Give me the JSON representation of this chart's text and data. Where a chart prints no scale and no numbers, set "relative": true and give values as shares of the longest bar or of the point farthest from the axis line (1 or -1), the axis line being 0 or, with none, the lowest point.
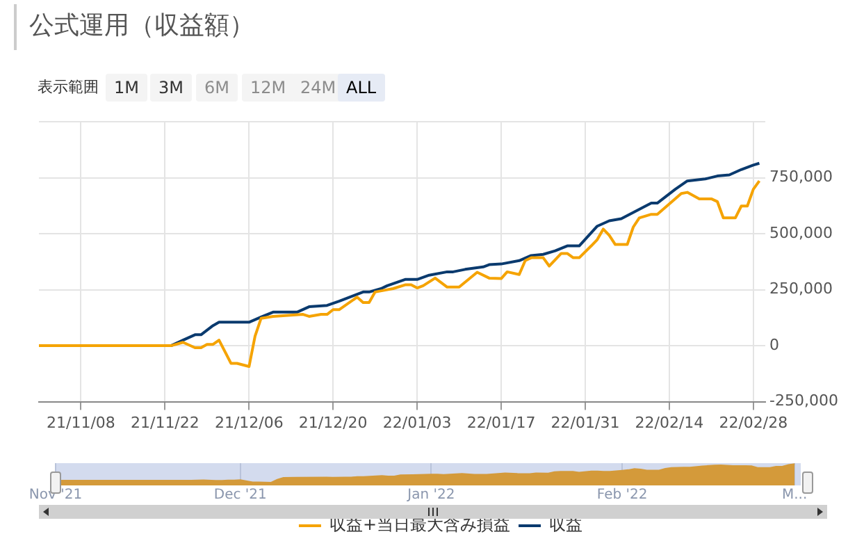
{
  "chart_data": [
    {
      "type": "line",
      "title": "公式運用（収益額）",
      "annotations": [
        "表示範囲",
        "1M",
        "3M",
        "6M",
        "12M",
        "24M",
        "ALL"
      ],
      "xlim": [
        "2021-11-01",
        "2022-03-02"
      ],
      "xticks": [
        {
          "value": "2021-11-08",
          "label": "21/11/08"
        },
        {
          "value": "2021-11-22",
          "label": "21/11/22"
        },
        {
          "value": "2021-12-06",
          "label": "21/12/06"
        },
        {
          "value": "2021-12-20",
          "label": "21/12/20"
        },
        {
          "value": "2022-01-03",
          "label": "22/01/03"
        },
        {
          "value": "2022-01-17",
          "label": "22/01/17"
        },
        {
          "value": "2022-01-31",
          "label": "22/01/31"
        },
        {
          "value": "2022-02-14",
          "label": "22/02/14"
        },
        {
          "value": "2022-02-28",
          "label": "22/02/28"
        }
      ],
      "ylim": [
        -250000,
        1000000
      ],
      "yticks": [
        {
          "value": -250000,
          "label": "-250,000"
        },
        {
          "value": 0,
          "label": "0"
        },
        {
          "value": 250000,
          "label": "250,000"
        },
        {
          "value": 500000,
          "label": "500,000"
        },
        {
          "value": 750000,
          "label": "750,000"
        },
        {
          "value": 1000000,
          "label": null
        }
      ],
      "grid": true,
      "legend": "bottom",
      "series": [
        {
          "name": "収益+当日最大含み損益",
          "color": "#f5a300",
          "x": [
            "2021-11-01",
            "2021-11-23",
            "2021-11-25",
            "2021-11-27",
            "2021-11-28",
            "2021-11-29",
            "2021-11-30",
            "2021-12-01",
            "2021-12-03",
            "2021-12-04",
            "2021-12-06",
            "2021-12-07",
            "2021-12-08",
            "2021-12-10",
            "2021-12-15",
            "2021-12-16",
            "2021-12-18",
            "2021-12-19",
            "2021-12-20",
            "2021-12-21",
            "2021-12-24",
            "2021-12-25",
            "2021-12-26",
            "2021-12-27",
            "2021-12-29",
            "2021-12-30",
            "2022-01-01",
            "2022-01-02",
            "2022-01-03",
            "2022-01-04",
            "2022-01-06",
            "2022-01-08",
            "2022-01-10",
            "2022-01-13",
            "2022-01-15",
            "2022-01-17",
            "2022-01-18",
            "2022-01-20",
            "2022-01-21",
            "2022-01-22",
            "2022-01-24",
            "2022-01-25",
            "2022-01-27",
            "2022-01-28",
            "2022-01-29",
            "2022-01-30",
            "2022-02-01",
            "2022-02-02",
            "2022-02-03",
            "2022-02-04",
            "2022-02-05",
            "2022-02-07",
            "2022-02-08",
            "2022-02-09",
            "2022-02-11",
            "2022-02-12",
            "2022-02-14",
            "2022-02-16",
            "2022-02-17",
            "2022-02-19",
            "2022-02-21",
            "2022-02-22",
            "2022-02-23",
            "2022-02-25",
            "2022-02-26",
            "2022-02-27",
            "2022-02-28",
            "2022-03-01"
          ],
          "values": [
            0,
            0,
            15000,
            -9000,
            -9000,
            6000,
            6000,
            25000,
            -79000,
            -79000,
            -93000,
            43000,
            122000,
            131000,
            140000,
            131000,
            140000,
            140000,
            161000,
            161000,
            217000,
            193000,
            193000,
            240000,
            250000,
            255000,
            272000,
            272000,
            258000,
            268000,
            302000,
            262000,
            262000,
            328000,
            302000,
            300000,
            330000,
            318000,
            380000,
            393000,
            393000,
            356000,
            412000,
            412000,
            393000,
            393000,
            446000,
            474000,
            521000,
            493000,
            452000,
            452000,
            530000,
            571000,
            587000,
            587000,
            633000,
            680000,
            685000,
            656000,
            656000,
            644000,
            571000,
            571000,
            624000,
            624000,
            699000,
            736000
          ]
        },
        {
          "name": "収益",
          "color": "#0a3a6e",
          "x": [
            "2021-11-01",
            "2021-11-23",
            "2021-11-25",
            "2021-11-27",
            "2021-11-28",
            "2021-11-30",
            "2021-12-01",
            "2021-12-06",
            "2021-12-08",
            "2021-12-10",
            "2021-12-14",
            "2021-12-16",
            "2021-12-19",
            "2021-12-21",
            "2021-12-25",
            "2021-12-26",
            "2021-12-28",
            "2021-12-29",
            "2022-01-01",
            "2022-01-03",
            "2022-01-05",
            "2022-01-08",
            "2022-01-09",
            "2022-01-11",
            "2022-01-14",
            "2022-01-15",
            "2022-01-17",
            "2022-01-20",
            "2022-01-22",
            "2022-01-24",
            "2022-01-26",
            "2022-01-28",
            "2022-01-30",
            "2022-02-02",
            "2022-02-04",
            "2022-02-06",
            "2022-02-08",
            "2022-02-11",
            "2022-02-12",
            "2022-02-15",
            "2022-02-17",
            "2022-02-20",
            "2022-02-22",
            "2022-02-24",
            "2022-02-26",
            "2022-02-28",
            "2022-03-01"
          ],
          "values": [
            0,
            0,
            25000,
            49000,
            49000,
            90000,
            105000,
            105000,
            128000,
            150000,
            150000,
            174000,
            180000,
            199000,
            240000,
            240000,
            255000,
            268000,
            296000,
            296000,
            315000,
            330000,
            330000,
            341000,
            352000,
            362000,
            365000,
            380000,
            403000,
            408000,
            424000,
            446000,
            446000,
            534000,
            558000,
            567000,
            595000,
            637000,
            637000,
            699000,
            736000,
            745000,
            758000,
            763000,
            787000,
            807000,
            815000
          ]
        }
      ]
    },
    {
      "type": "area",
      "relative": true,
      "color": "#d49a3a",
      "grid": true,
      "xlim": [
        "2021-11-01",
        "2022-03-02"
      ],
      "xticks": [
        {
          "value": "2021-11-01",
          "label": "Nov '21"
        },
        {
          "value": "2021-12-01",
          "label": "Dec '21"
        },
        {
          "value": "2022-01-01",
          "label": "Jan '22"
        },
        {
          "value": "2022-02-01",
          "label": "Feb '22"
        },
        {
          "value": "2022-03-01",
          "label": "M..."
        }
      ],
      "x": [
        "2021-11-01",
        "2021-11-23",
        "2021-11-25",
        "2021-11-27",
        "2021-11-28",
        "2021-11-29",
        "2021-11-30",
        "2021-12-01",
        "2021-12-03",
        "2021-12-04",
        "2021-12-06",
        "2021-12-07",
        "2021-12-08",
        "2021-12-10",
        "2021-12-15",
        "2021-12-16",
        "2021-12-18",
        "2021-12-19",
        "2021-12-20",
        "2021-12-21",
        "2021-12-24",
        "2021-12-25",
        "2021-12-26",
        "2021-12-27",
        "2021-12-29",
        "2021-12-30",
        "2022-01-01",
        "2022-01-02",
        "2022-01-03",
        "2022-01-04",
        "2022-01-06",
        "2022-01-08",
        "2022-01-10",
        "2022-01-13",
        "2022-01-15",
        "2022-01-17",
        "2022-01-18",
        "2022-01-20",
        "2022-01-21",
        "2022-01-22",
        "2022-01-24",
        "2022-01-25",
        "2022-01-27",
        "2022-01-28",
        "2022-01-29",
        "2022-01-30",
        "2022-02-01",
        "2022-02-02",
        "2022-02-03",
        "2022-02-04",
        "2022-02-05",
        "2022-02-07",
        "2022-02-08",
        "2022-02-09",
        "2022-02-11",
        "2022-02-12",
        "2022-02-14",
        "2022-02-16",
        "2022-02-17",
        "2022-02-19",
        "2022-02-21",
        "2022-02-22",
        "2022-02-23",
        "2022-02-25",
        "2022-02-26",
        "2022-02-27",
        "2022-02-28",
        "2022-03-01"
      ],
      "values": [
        0.11,
        0.11,
        0.13,
        0.1,
        0.1,
        0.12,
        0.12,
        0.14,
        0.02,
        0.02,
        0,
        0.16,
        0.26,
        0.27,
        0.28,
        0.27,
        0.28,
        0.28,
        0.31,
        0.31,
        0.37,
        0.34,
        0.34,
        0.4,
        0.41,
        0.42,
        0.44,
        0.44,
        0.42,
        0.44,
        0.48,
        0.43,
        0.43,
        0.51,
        0.48,
        0.47,
        0.51,
        0.5,
        0.57,
        0.59,
        0.59,
        0.54,
        0.61,
        0.61,
        0.59,
        0.59,
        0.65,
        0.68,
        0.74,
        0.71,
        0.66,
        0.66,
        0.75,
        0.8,
        0.82,
        0.82,
        0.88,
        0.93,
        0.94,
        0.9,
        0.9,
        0.89,
        0.8,
        0.8,
        0.86,
        0.86,
        0.96,
        1
      ]
    }
  ]
}
